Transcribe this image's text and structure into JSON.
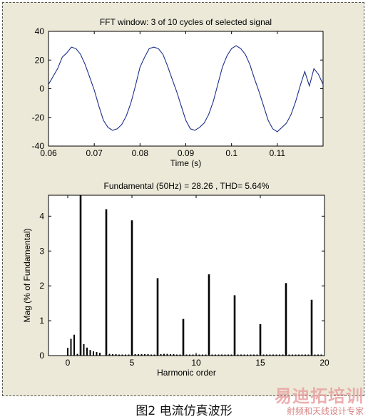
{
  "caption": "图2 电流仿真波形",
  "watermark": {
    "main": "易迪拓培训",
    "sub": "射频和天线设计专家"
  },
  "chart_data": [
    {
      "type": "line",
      "title": "FFT window: 3 of 10 cycles of selected signal",
      "xlabel": "Time (s)",
      "ylabel": "",
      "xlim": [
        0.06,
        0.12
      ],
      "ylim": [
        -40,
        40
      ],
      "xticks": [
        0.06,
        0.07,
        0.08,
        0.09,
        0.1,
        0.11
      ],
      "xtick_labels": [
        "0.06",
        "0.07",
        "0.08",
        "0.09",
        "0.1",
        "0.11"
      ],
      "yticks": [
        -40,
        -20,
        0,
        20,
        40
      ],
      "ytick_labels": [
        "-40",
        "-20",
        "0",
        "20",
        "40"
      ],
      "series": [
        {
          "color": "#1c2f8a",
          "x": [
            0.06,
            0.062,
            0.063,
            0.064,
            0.065,
            0.066,
            0.067,
            0.068,
            0.069,
            0.07,
            0.071,
            0.072,
            0.073,
            0.074,
            0.075,
            0.076,
            0.077,
            0.078,
            0.079,
            0.08,
            0.081,
            0.082,
            0.083,
            0.084,
            0.085,
            0.086,
            0.087,
            0.088,
            0.089,
            0.09,
            0.091,
            0.092,
            0.093,
            0.094,
            0.095,
            0.096,
            0.097,
            0.098,
            0.099,
            0.1,
            0.101,
            0.102,
            0.103,
            0.104,
            0.105,
            0.106,
            0.107,
            0.108,
            0.109,
            0.11,
            0.111,
            0.112,
            0.113,
            0.114,
            0.115,
            0.116,
            0.117,
            0.118,
            0.119,
            0.12
          ],
          "y": [
            3,
            14,
            22,
            25,
            29,
            28,
            24,
            17,
            8,
            -1,
            -12,
            -22,
            -27,
            -29,
            -28,
            -25,
            -19,
            -10,
            2,
            15,
            22,
            28,
            29,
            28,
            24,
            16,
            7,
            -2,
            -12,
            -22,
            -28,
            -29,
            -27,
            -24,
            -18,
            -9,
            3,
            15,
            23,
            28,
            30,
            28,
            24,
            17,
            7,
            -2,
            -12,
            -22,
            -28,
            -30,
            -27,
            -24,
            -18,
            -9,
            2,
            12,
            2,
            14,
            10,
            3
          ]
        }
      ]
    },
    {
      "type": "bar",
      "title": "Fundamental (50Hz) = 28.26 , THD= 5.64%",
      "xlabel": "Harmonic order",
      "ylabel": "Mag (% of Fundamental)",
      "xlim": [
        -1.5,
        20
      ],
      "ylim": [
        0,
        4.6
      ],
      "xticks": [
        0,
        5,
        10,
        15,
        20
      ],
      "xtick_labels": [
        "0",
        "5",
        "10",
        "15",
        "20"
      ],
      "yticks": [
        0,
        1,
        2,
        3,
        4
      ],
      "ytick_labels": [
        "0",
        "1",
        "2",
        "3",
        "4"
      ],
      "x": [
        0,
        0.25,
        0.5,
        0.75,
        1,
        1.25,
        1.5,
        1.75,
        2,
        2.25,
        2.5,
        3,
        3.25,
        3.5,
        3.75,
        4,
        4.25,
        4.5,
        4.75,
        5,
        5.25,
        5.5,
        5.75,
        6,
        6.25,
        6.5,
        6.75,
        7,
        7.25,
        7.5,
        7.75,
        8,
        8.25,
        8.5,
        8.75,
        9,
        9.25,
        9.5,
        9.75,
        10,
        10.25,
        10.5,
        10.75,
        11,
        11.25,
        11.5,
        11.75,
        12,
        12.25,
        12.5,
        12.75,
        13,
        13.25,
        13.5,
        13.75,
        14,
        14.25,
        14.5,
        14.75,
        15,
        15.25,
        15.5,
        15.75,
        16,
        16.25,
        16.5,
        16.75,
        17,
        17.25,
        17.5,
        17.75,
        18,
        18.25,
        18.5,
        18.75,
        19,
        19.25,
        19.5,
        19.75
      ],
      "values": [
        0.22,
        0.48,
        0.6,
        0.05,
        4.6,
        0.33,
        0.23,
        0.16,
        0.12,
        0.1,
        0.08,
        4.2,
        0.05,
        0.04,
        0.04,
        0.03,
        0.03,
        0.03,
        0.03,
        3.88,
        0.04,
        0.04,
        0.04,
        0.04,
        0.04,
        0.03,
        0.03,
        2.22,
        0.04,
        0.05,
        0.05,
        0.04,
        0.04,
        0.03,
        0.03,
        1.05,
        0.03,
        0.03,
        0.03,
        0.03,
        0.03,
        0.03,
        0.03,
        2.33,
        0.03,
        0.03,
        0.03,
        0.03,
        0.03,
        0.03,
        0.03,
        1.73,
        0.03,
        0.03,
        0.03,
        0.03,
        0.03,
        0.03,
        0.03,
        0.9,
        0.03,
        0.03,
        0.03,
        0.03,
        0.03,
        0.03,
        0.03,
        2.08,
        0.03,
        0.03,
        0.03,
        0.03,
        0.03,
        0.03,
        0.03,
        1.6,
        0.03,
        0.03,
        0.03
      ]
    }
  ]
}
